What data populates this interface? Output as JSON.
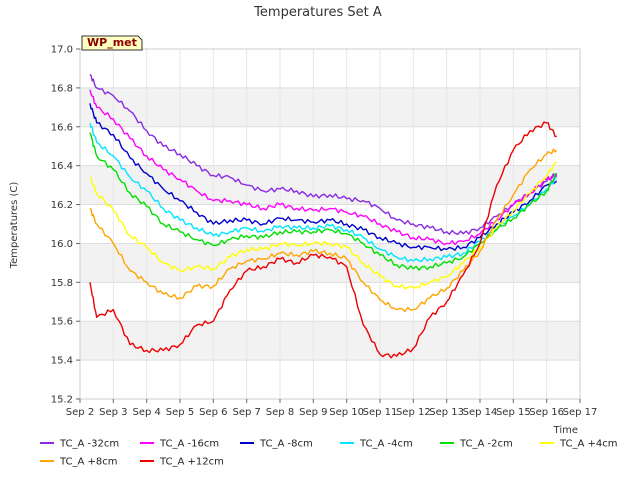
{
  "chart_data": {
    "type": "line",
    "title": "Temperatures Set A",
    "xlabel": "Time",
    "ylabel": "Temperatures (C)",
    "site_label": "WP_met",
    "ylim": [
      15.2,
      17.0
    ],
    "yticks": [
      15.2,
      15.4,
      15.6,
      15.8,
      16.0,
      16.2,
      16.4,
      16.6,
      16.8,
      17.0
    ],
    "ytick_labels": [
      "15.2",
      "15.4",
      "15.6",
      "15.8",
      "16.0",
      "16.2",
      "16.4",
      "16.6",
      "16.8",
      "17.0"
    ],
    "xlim": [
      2,
      17
    ],
    "xticks": [
      2,
      3,
      4,
      5,
      6,
      7,
      8,
      9,
      10,
      11,
      12,
      13,
      14,
      15,
      16,
      17
    ],
    "xtick_labels": [
      "Sep 2",
      "Sep 3",
      "Sep 4",
      "Sep 5",
      "Sep 6",
      "Sep 7",
      "Sep 8",
      "Sep 9",
      "Sep 10",
      "Sep 11",
      "Sep 12",
      "Sep 13",
      "Sep 14",
      "Sep 15",
      "Sep 16",
      "Sep 17"
    ],
    "grid": true,
    "legend_position": "bottom",
    "x": [
      2.3,
      2.5,
      3.0,
      3.5,
      4.0,
      4.5,
      5.0,
      5.5,
      6.0,
      6.5,
      7.0,
      7.5,
      8.0,
      8.5,
      9.0,
      9.5,
      10.0,
      10.5,
      11.0,
      11.5,
      12.0,
      12.5,
      13.0,
      13.5,
      14.0,
      14.5,
      15.0,
      15.5,
      16.0,
      16.3
    ],
    "series": [
      {
        "name": "TC_A -32cm",
        "color": "#8a2be2",
        "values": [
          16.87,
          16.8,
          16.76,
          16.68,
          16.58,
          16.5,
          16.46,
          16.4,
          16.35,
          16.34,
          16.3,
          16.27,
          16.28,
          16.27,
          16.24,
          16.25,
          16.23,
          16.22,
          16.18,
          16.12,
          16.1,
          16.08,
          16.06,
          16.05,
          16.08,
          16.14,
          16.2,
          16.26,
          16.32,
          16.36
        ]
      },
      {
        "name": "TC_A -16cm",
        "color": "#ff00ff",
        "values": [
          16.79,
          16.7,
          16.64,
          16.54,
          16.45,
          16.38,
          16.33,
          16.27,
          16.22,
          16.22,
          16.2,
          16.18,
          16.2,
          16.18,
          16.17,
          16.18,
          16.16,
          16.14,
          16.1,
          16.06,
          16.03,
          16.02,
          16.0,
          16.01,
          16.05,
          16.12,
          16.2,
          16.26,
          16.33,
          16.35
        ]
      },
      {
        "name": "TC_A -8cm",
        "color": "#0000cd",
        "values": [
          16.72,
          16.62,
          16.56,
          16.44,
          16.36,
          16.28,
          16.22,
          16.16,
          16.1,
          16.12,
          16.12,
          16.1,
          16.13,
          16.12,
          16.11,
          16.12,
          16.1,
          16.07,
          16.03,
          16.0,
          15.98,
          15.98,
          15.97,
          15.98,
          16.03,
          16.1,
          16.16,
          16.22,
          16.3,
          16.32
        ]
      },
      {
        "name": "TC_A -4cm",
        "color": "#00e5ff",
        "values": [
          16.62,
          16.52,
          16.45,
          16.34,
          16.27,
          16.18,
          16.12,
          16.08,
          16.04,
          16.06,
          16.08,
          16.06,
          16.09,
          16.08,
          16.08,
          16.09,
          16.07,
          16.03,
          15.97,
          15.93,
          15.91,
          15.92,
          15.93,
          15.95,
          16.01,
          16.08,
          16.14,
          16.2,
          16.28,
          16.34
        ]
      },
      {
        "name": "TC_A -2cm",
        "color": "#00e000",
        "values": [
          16.57,
          16.45,
          16.38,
          16.26,
          16.19,
          16.1,
          16.06,
          16.02,
          15.99,
          16.02,
          16.04,
          16.03,
          16.06,
          16.06,
          16.06,
          16.07,
          16.05,
          16.0,
          15.94,
          15.89,
          15.87,
          15.88,
          15.9,
          15.93,
          16.0,
          16.07,
          16.13,
          16.2,
          16.27,
          16.36
        ]
      },
      {
        "name": "TC_A +4cm",
        "color": "#ffff00",
        "values": [
          16.34,
          16.26,
          16.17,
          16.04,
          15.98,
          15.9,
          15.86,
          15.88,
          15.87,
          15.93,
          15.97,
          15.97,
          16.0,
          15.99,
          16.0,
          16.0,
          15.98,
          15.9,
          15.83,
          15.78,
          15.77,
          15.8,
          15.83,
          15.9,
          15.98,
          16.08,
          16.17,
          16.26,
          16.35,
          16.42
        ]
      },
      {
        "name": "TC_A +8cm",
        "color": "#ffa500",
        "values": [
          16.18,
          16.1,
          16.0,
          15.86,
          15.8,
          15.74,
          15.72,
          15.78,
          15.78,
          15.87,
          15.91,
          15.92,
          15.95,
          15.94,
          15.96,
          15.95,
          15.92,
          15.8,
          15.71,
          15.66,
          15.66,
          15.72,
          15.77,
          15.86,
          15.96,
          16.12,
          16.25,
          16.38,
          16.46,
          16.48
        ]
      },
      {
        "name": "TC_A +12cm",
        "color": "#ee0000",
        "values": [
          15.8,
          15.62,
          15.66,
          15.48,
          15.45,
          15.45,
          15.48,
          15.58,
          15.6,
          15.76,
          15.86,
          15.88,
          15.92,
          15.9,
          15.94,
          15.93,
          15.88,
          15.58,
          15.43,
          15.42,
          15.46,
          15.62,
          15.7,
          15.84,
          16.0,
          16.3,
          16.48,
          16.58,
          16.62,
          16.55
        ]
      }
    ]
  }
}
